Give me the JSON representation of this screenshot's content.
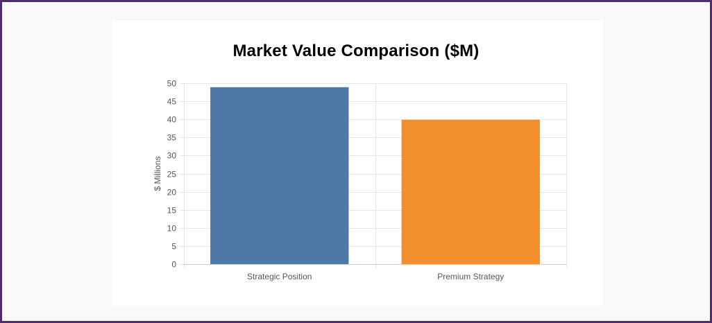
{
  "chart_data": {
    "type": "bar",
    "title": "Market Value Comparison ($M)",
    "xlabel": "",
    "ylabel": "$ Millions",
    "categories": [
      "Strategic Position",
      "Premium Strategy"
    ],
    "values": [
      48.8,
      39.8
    ],
    "colors": [
      "#4e79a7",
      "#f28e2c"
    ],
    "ylim": [
      0,
      50
    ],
    "yticks": [
      0,
      5,
      10,
      15,
      20,
      25,
      30,
      35,
      40,
      45,
      50
    ],
    "grid": true,
    "legend": "none"
  }
}
